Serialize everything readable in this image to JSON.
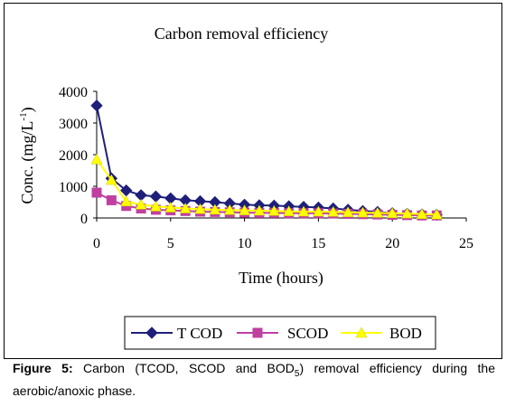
{
  "chart_data": {
    "type": "line",
    "title": "Carbon removal efficiency",
    "xlabel": "Time (hours)",
    "ylabel": "Conc. (mg/L",
    "ylabel_sup": "-1",
    "ylabel_close": ")",
    "xlim": [
      0,
      25
    ],
    "ylim": [
      0,
      4000
    ],
    "x_ticks": [
      0,
      5,
      10,
      15,
      20,
      25
    ],
    "y_ticks": [
      0,
      1000,
      2000,
      3000,
      4000
    ],
    "x_tick_labels": [
      "0",
      "5",
      "10",
      "15",
      "20",
      "25"
    ],
    "y_tick_labels": [
      "0",
      "1000",
      "2000",
      "3000",
      "4000"
    ],
    "legend_position": "bottom",
    "grid": false,
    "x": [
      0,
      1,
      2,
      3,
      4,
      5,
      6,
      7,
      8,
      9,
      10,
      11,
      12,
      13,
      14,
      15,
      16,
      17,
      18,
      19,
      20,
      21,
      22,
      23
    ],
    "series": [
      {
        "name": "T COD",
        "color": "#1f1f7a",
        "marker": "diamond",
        "values": [
          3550,
          1250,
          870,
          720,
          680,
          620,
          560,
          530,
          500,
          460,
          420,
          400,
          390,
          370,
          350,
          330,
          300,
          260,
          220,
          190,
          150,
          130,
          110,
          100
        ]
      },
      {
        "name": "SCOD",
        "color": "#c040a0",
        "marker": "square",
        "values": [
          800,
          560,
          380,
          300,
          260,
          240,
          220,
          200,
          190,
          180,
          170,
          160,
          160,
          150,
          150,
          150,
          140,
          130,
          120,
          110,
          100,
          90,
          80,
          80
        ]
      },
      {
        "name": "BOD",
        "color": "#ffff00",
        "marker": "triangle",
        "values": [
          1850,
          1200,
          520,
          420,
          360,
          330,
          300,
          280,
          260,
          250,
          240,
          230,
          220,
          210,
          200,
          200,
          190,
          180,
          170,
          160,
          150,
          140,
          120,
          110
        ]
      }
    ]
  },
  "caption": {
    "label": "Figure 5:",
    "text_before_sub": " Carbon (TCOD, SCOD and BOD",
    "sub": "5",
    "text_after_sub": ") removal efficiency during the aerobic/anoxic phase."
  }
}
